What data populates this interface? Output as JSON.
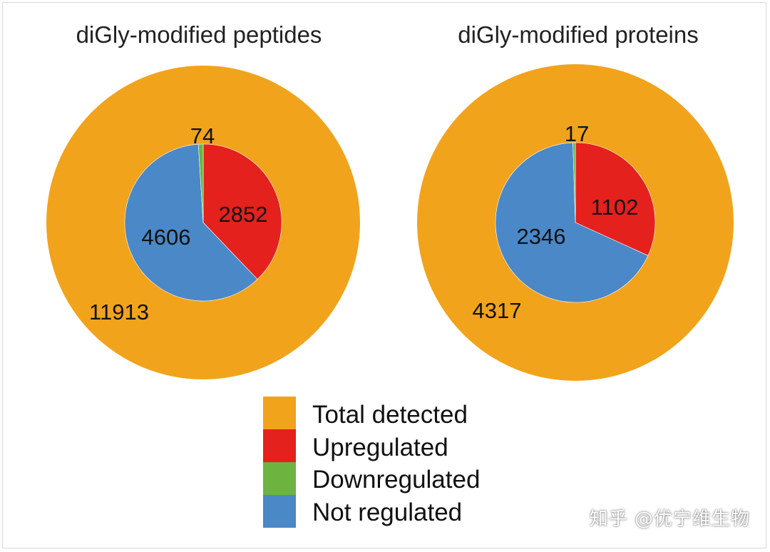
{
  "colors": {
    "total": "#F2A31C",
    "up": "#E4211C",
    "down": "#6DB33F",
    "not": "#4A88C7"
  },
  "chart_data": [
    {
      "type": "pie",
      "title": "diGly-modified peptides",
      "outer": {
        "name": "Total detected",
        "value": 11913
      },
      "inner": [
        {
          "name": "Upregulated",
          "value": 2852
        },
        {
          "name": "Not regulated",
          "value": 4606
        },
        {
          "name": "Downregulated",
          "value": 74
        }
      ]
    },
    {
      "type": "pie",
      "title": "diGly-modified proteins",
      "outer": {
        "name": "Total detected",
        "value": 4317
      },
      "inner": [
        {
          "name": "Upregulated",
          "value": 1102
        },
        {
          "name": "Not regulated",
          "value": 2346
        },
        {
          "name": "Downregulated",
          "value": 17
        }
      ]
    }
  ],
  "legend": [
    "Total detected",
    "Upregulated",
    "Downregulated",
    "Not regulated"
  ],
  "watermark": "知乎 @优宁维生物"
}
